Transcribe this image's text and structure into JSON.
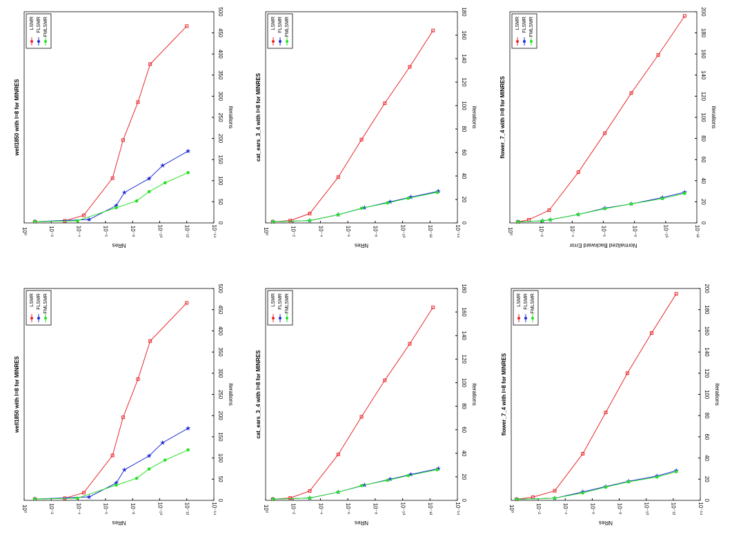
{
  "chart_data": [
    {
      "type": "line",
      "title": "well1850 with l=8 for MINRES",
      "xlabel": "NRes",
      "ylabel": "iterations",
      "xlog": true,
      "legend": "upper left",
      "xlim": [
        1,
        1e-14
      ],
      "xticks": [
        {
          "value": 1,
          "label": "10⁰"
        },
        {
          "value": 0.01,
          "label": "10⁻²"
        },
        {
          "value": 0.0001,
          "label": "10⁻⁴"
        },
        {
          "value": 1e-06,
          "label": "10⁻⁶"
        },
        {
          "value": 1e-08,
          "label": "10⁻⁸"
        },
        {
          "value": 1e-10,
          "label": "10⁻¹⁰"
        },
        {
          "value": 1e-12,
          "label": "10⁻¹²"
        },
        {
          "value": 1e-14,
          "label": "10⁻¹⁴"
        }
      ],
      "ylim": [
        0,
        500
      ],
      "yticks": [
        0,
        50,
        100,
        150,
        200,
        250,
        300,
        350,
        400,
        450,
        500
      ],
      "series": [
        {
          "name": "LSMR",
          "color": "#e8262b",
          "marker": "square",
          "x": [
            0.16,
            0.001,
            4e-05,
            3e-07,
            5e-08,
            4e-09,
            5e-10,
            1e-12
          ],
          "values": [
            3,
            5,
            18,
            106,
            196,
            286,
            376,
            466
          ]
        },
        {
          "name": "FLSMR",
          "color": "#1f2bd6",
          "marker": "star",
          "x": [
            0.16,
            1.6e-05,
            1.6e-07,
            4e-08,
            6e-10,
            6e-11,
            8e-13
          ],
          "values": [
            3,
            8,
            41,
            72,
            105,
            136,
            170
          ]
        },
        {
          "name": "FMLSMR",
          "color": "#25e025",
          "marker": "circle",
          "x": [
            0.16,
            0.00012,
            1.6e-07,
            5e-09,
            6e-10,
            4e-11,
            8e-13
          ],
          "values": [
            3,
            5,
            36,
            52,
            74,
            95,
            119
          ]
        }
      ]
    },
    {
      "type": "line",
      "title": "cat_ears_3_4 with l=8 for MINRES",
      "xlabel": "NRes",
      "ylabel": "iterations",
      "xlog": true,
      "legend": "upper left",
      "xlim": [
        1,
        1e-14
      ],
      "xticks": [
        {
          "value": 1,
          "label": "10⁰"
        },
        {
          "value": 0.01,
          "label": "10⁻²"
        },
        {
          "value": 0.0001,
          "label": "10⁻⁴"
        },
        {
          "value": 1e-06,
          "label": "10⁻⁶"
        },
        {
          "value": 1e-08,
          "label": "10⁻⁸"
        },
        {
          "value": 1e-10,
          "label": "10⁻¹⁰"
        },
        {
          "value": 1e-12,
          "label": "10⁻¹²"
        },
        {
          "value": 1e-14,
          "label": "10⁻¹⁴"
        }
      ],
      "ylim": [
        0,
        180
      ],
      "yticks": [
        0,
        20,
        40,
        60,
        80,
        100,
        120,
        140,
        160,
        180
      ],
      "series": [
        {
          "name": "LSMR",
          "color": "#e8262b",
          "marker": "square",
          "x": [
            0.3,
            0.016,
            0.0006,
            5e-06,
            1e-07,
            2e-09,
            3e-11,
            6e-13
          ],
          "values": [
            1,
            2,
            8,
            39,
            71,
            102,
            133,
            164
          ]
        },
        {
          "name": "FLSMR",
          "color": "#1f2bd6",
          "marker": "star",
          "x": [
            0.3,
            0.0006,
            5e-06,
            6e-08,
            8e-10,
            2.5e-11,
            2.5e-13
          ],
          "values": [
            1,
            2,
            7,
            13,
            18,
            22,
            27
          ]
        },
        {
          "name": "FMLSMR",
          "color": "#25e025",
          "marker": "circle",
          "x": [
            0.3,
            0.0006,
            5e-06,
            1e-07,
            1.3e-09,
            4e-11,
            3e-13
          ],
          "values": [
            1,
            2,
            7,
            12.5,
            17,
            21,
            26
          ]
        }
      ]
    },
    {
      "type": "line",
      "title": "flower_7_4 with l=8 for MINRES",
      "xlabel": "Normalized Backward Error",
      "ylabel": "iterations",
      "xlog": true,
      "legend": "upper left",
      "xlim": [
        1,
        1e-12
      ],
      "xticks": [
        {
          "value": 1,
          "label": "10⁰"
        },
        {
          "value": 0.01,
          "label": "10⁻²"
        },
        {
          "value": 0.0001,
          "label": "10⁻⁴"
        },
        {
          "value": 1e-06,
          "label": "10⁻⁶"
        },
        {
          "value": 1e-08,
          "label": "10⁻⁸"
        },
        {
          "value": 1e-10,
          "label": "10⁻¹⁰"
        },
        {
          "value": 1e-12,
          "label": "10⁻¹²"
        }
      ],
      "ylim": [
        0,
        200
      ],
      "yticks": [
        0,
        20,
        40,
        60,
        80,
        100,
        120,
        140,
        160,
        180,
        200
      ],
      "series": [
        {
          "name": "LSMR",
          "color": "#e8262b",
          "marker": "square",
          "x": [
            0.3,
            0.06,
            0.003,
            4e-05,
            8e-07,
            1.6e-08,
            3e-10,
            6e-12
          ],
          "values": [
            1,
            3,
            12,
            48,
            85,
            123,
            159,
            196
          ]
        },
        {
          "name": "FLSMR",
          "color": "#1f2bd6",
          "marker": "star",
          "x": [
            0.3,
            0.008,
            0.0025,
            4e-05,
            8e-07,
            1.6e-08,
            1.6e-10,
            6e-12
          ],
          "values": [
            1,
            2,
            3,
            8,
            14,
            18,
            24,
            29
          ]
        },
        {
          "name": "FMLSMR",
          "color": "#25e025",
          "marker": "circle",
          "x": [
            0.3,
            0.008,
            0.0025,
            4e-05,
            8e-07,
            1.6e-08,
            1.6e-10,
            6e-12
          ],
          "values": [
            1,
            2,
            3,
            8,
            13.5,
            18,
            23,
            28
          ]
        }
      ]
    },
    {
      "type": "line",
      "title": "well1850 with l=8 for MINRES",
      "xlabel": "NRes",
      "ylabel": "iterations",
      "xlog": true,
      "legend": "upper left",
      "xlim": [
        1,
        1e-14
      ],
      "xticks": [
        {
          "value": 1,
          "label": "10⁰"
        },
        {
          "value": 0.01,
          "label": "10⁻²"
        },
        {
          "value": 0.0001,
          "label": "10⁻⁴"
        },
        {
          "value": 1e-06,
          "label": "10⁻⁶"
        },
        {
          "value": 1e-08,
          "label": "10⁻⁸"
        },
        {
          "value": 1e-10,
          "label": "10⁻¹⁰"
        },
        {
          "value": 1e-12,
          "label": "10⁻¹²"
        },
        {
          "value": 1e-14,
          "label": "10⁻¹⁴"
        }
      ],
      "ylim": [
        0,
        500
      ],
      "yticks": [
        0,
        50,
        100,
        150,
        200,
        250,
        300,
        350,
        400,
        450,
        500
      ],
      "series": [
        {
          "name": "LSMR",
          "color": "#e8262b",
          "marker": "square",
          "x": [
            0.16,
            0.001,
            4e-05,
            3e-07,
            5e-08,
            4e-09,
            5e-10,
            1e-12
          ],
          "values": [
            3,
            5,
            18,
            106,
            196,
            286,
            376,
            466
          ]
        },
        {
          "name": "FLSMR",
          "color": "#1f2bd6",
          "marker": "star",
          "x": [
            0.16,
            1.6e-05,
            1.6e-07,
            4e-08,
            6e-10,
            6e-11,
            8e-13
          ],
          "values": [
            3,
            8,
            41,
            72,
            105,
            136,
            170
          ]
        },
        {
          "name": "FMLSMR",
          "color": "#25e025",
          "marker": "circle",
          "x": [
            0.16,
            0.00012,
            1.6e-07,
            5e-09,
            6e-10,
            4e-11,
            8e-13
          ],
          "values": [
            3,
            5,
            36,
            52,
            74,
            95,
            119
          ]
        }
      ]
    },
    {
      "type": "line",
      "title": "cat_ears_3_4 with l=8 for MINRES",
      "xlabel": "NRes",
      "ylabel": "iterations",
      "xlog": true,
      "legend": "upper left",
      "xlim": [
        1,
        1e-14
      ],
      "xticks": [
        {
          "value": 1,
          "label": "10⁰"
        },
        {
          "value": 0.01,
          "label": "10⁻²"
        },
        {
          "value": 0.0001,
          "label": "10⁻⁴"
        },
        {
          "value": 1e-06,
          "label": "10⁻⁶"
        },
        {
          "value": 1e-08,
          "label": "10⁻⁸"
        },
        {
          "value": 1e-10,
          "label": "10⁻¹⁰"
        },
        {
          "value": 1e-12,
          "label": "10⁻¹²"
        },
        {
          "value": 1e-14,
          "label": "10⁻¹⁴"
        }
      ],
      "ylim": [
        0,
        180
      ],
      "yticks": [
        0,
        20,
        40,
        60,
        80,
        100,
        120,
        140,
        160,
        180
      ],
      "series": [
        {
          "name": "LSMR",
          "color": "#e8262b",
          "marker": "square",
          "x": [
            0.3,
            0.016,
            0.0006,
            5e-06,
            1e-07,
            2e-09,
            3e-11,
            6e-13
          ],
          "values": [
            1,
            2,
            8,
            39,
            71,
            102,
            133,
            164
          ]
        },
        {
          "name": "FLSMR",
          "color": "#1f2bd6",
          "marker": "star",
          "x": [
            0.3,
            0.0006,
            5e-06,
            6e-08,
            8e-10,
            2.5e-11,
            2.5e-13
          ],
          "values": [
            1,
            2,
            7,
            13,
            18,
            22,
            27
          ]
        },
        {
          "name": "FMLSMR",
          "color": "#25e025",
          "marker": "circle",
          "x": [
            0.3,
            0.0006,
            5e-06,
            1e-07,
            1.3e-09,
            4e-11,
            3e-13
          ],
          "values": [
            1,
            2,
            7,
            12.5,
            17,
            21,
            26
          ]
        }
      ]
    },
    {
      "type": "line",
      "title": "flower_7_4 with l=8 for MINRES",
      "xlabel": "NRes",
      "ylabel": "iterations",
      "xlog": true,
      "legend": "upper left",
      "xlim": [
        1,
        1e-14
      ],
      "xticks": [
        {
          "value": 1,
          "label": "10⁰"
        },
        {
          "value": 0.01,
          "label": "10⁻²"
        },
        {
          "value": 0.0001,
          "label": "10⁻⁴"
        },
        {
          "value": 1e-06,
          "label": "10⁻⁶"
        },
        {
          "value": 1e-08,
          "label": "10⁻⁸"
        },
        {
          "value": 1e-10,
          "label": "10⁻¹⁰"
        },
        {
          "value": 1e-12,
          "label": "10⁻¹²"
        },
        {
          "value": 1e-14,
          "label": "10⁻¹⁴"
        }
      ],
      "ylim": [
        0,
        200
      ],
      "yticks": [
        0,
        20,
        40,
        60,
        80,
        100,
        120,
        140,
        160,
        180,
        200
      ],
      "series": [
        {
          "name": "LSMR",
          "color": "#e8262b",
          "marker": "square",
          "x": [
            0.4,
            0.025,
            0.0006,
            5e-06,
            1e-07,
            2.5e-09,
            4e-11,
            6e-13
          ],
          "values": [
            1,
            3,
            9,
            44,
            83,
            120,
            158,
            195
          ]
        },
        {
          "name": "FLSMR",
          "color": "#1f2bd6",
          "marker": "star",
          "x": [
            0.4,
            0.0006,
            5e-06,
            1e-07,
            2e-09,
            1.6e-11,
            6e-13
          ],
          "values": [
            1,
            2,
            8,
            13,
            18,
            23,
            28
          ]
        },
        {
          "name": "FMLSMR",
          "color": "#25e025",
          "marker": "circle",
          "x": [
            0.4,
            0.0006,
            5e-06,
            1e-07,
            2e-09,
            1.6e-11,
            6e-13
          ],
          "values": [
            1,
            2,
            7,
            12.5,
            17.5,
            22,
            27
          ]
        }
      ]
    }
  ]
}
